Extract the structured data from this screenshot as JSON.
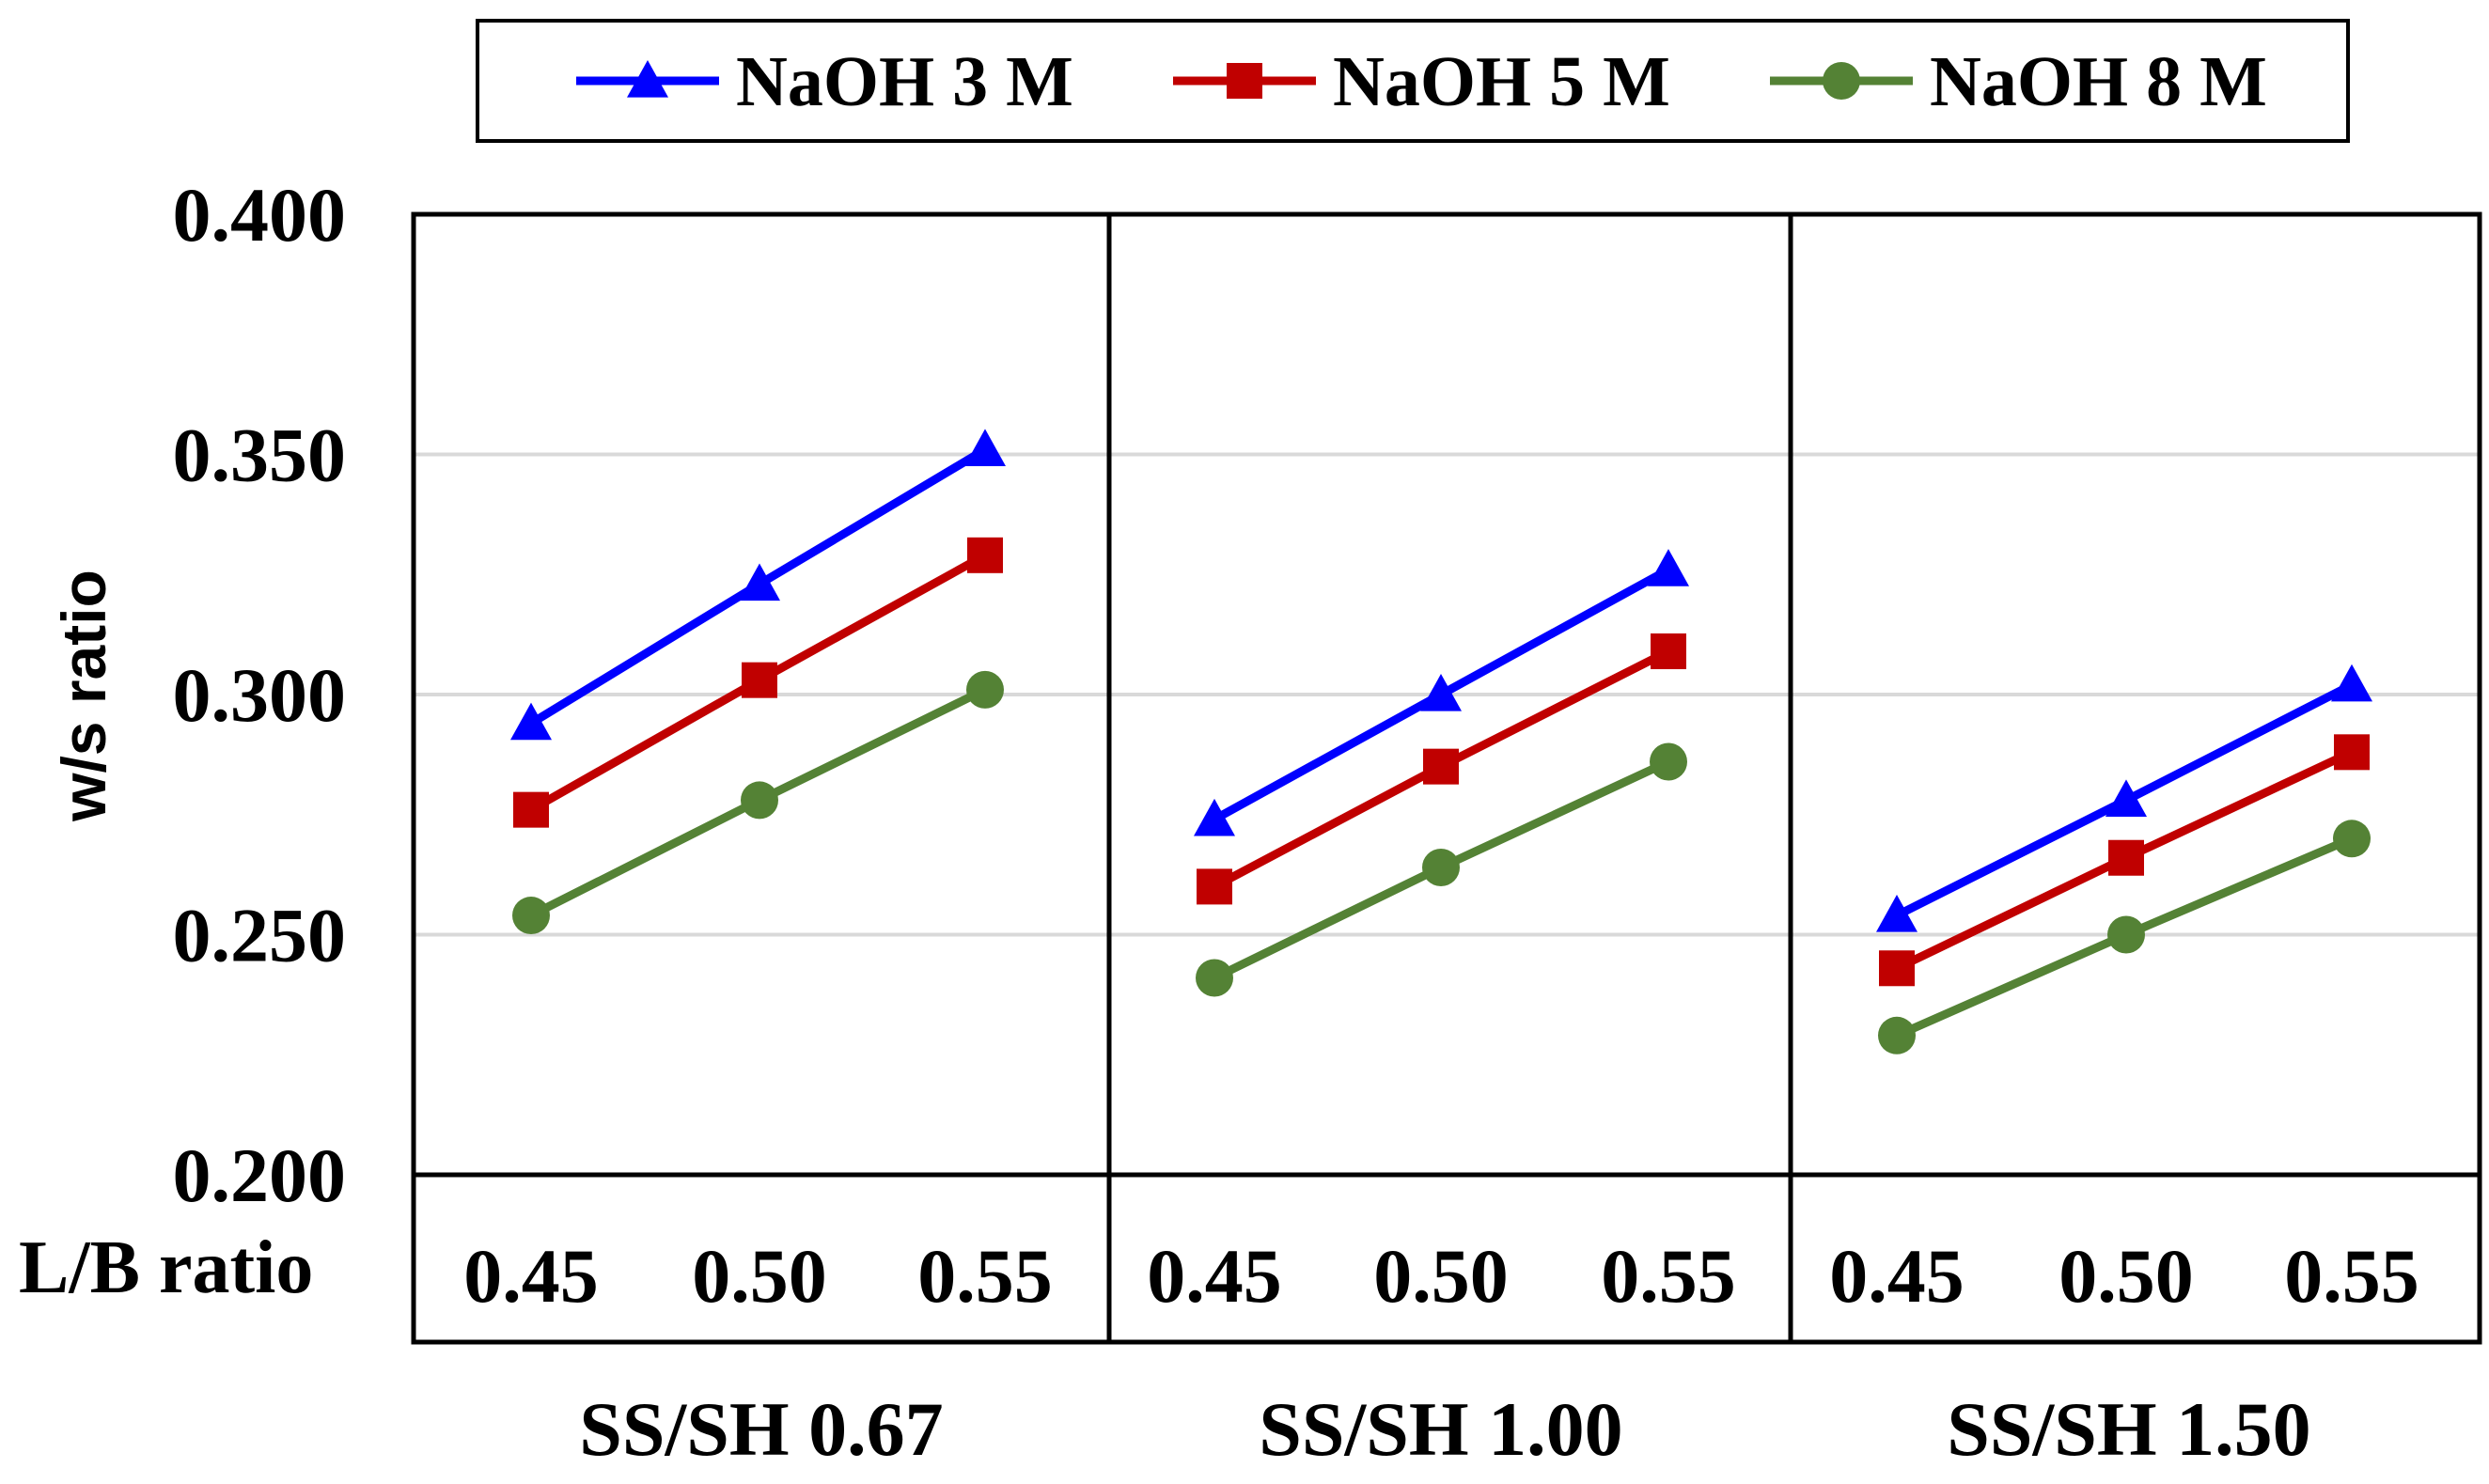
{
  "chart_data": {
    "type": "line",
    "ylabel": "w/s ratio",
    "row_label": "L/B ratio",
    "ylim": [
      0.2,
      0.4
    ],
    "yticks": [
      "0.200",
      "0.250",
      "0.300",
      "0.350",
      "0.400"
    ],
    "ytick_values": [
      0.2,
      0.25,
      0.3,
      0.35,
      0.4
    ],
    "grid": true,
    "legend_position": "top",
    "x_categories": [
      "0.45",
      "0.50",
      "0.55"
    ],
    "groups": [
      {
        "label": "SS/SH 0.67",
        "series": [
          {
            "name": "NaOH 3 M",
            "values": [
              0.294,
              0.323,
              0.351
            ]
          },
          {
            "name": "NaOH 5 M",
            "values": [
              0.276,
              0.303,
              0.329
            ]
          },
          {
            "name": "NaOH 8 M",
            "values": [
              0.254,
              0.278,
              0.301
            ]
          }
        ]
      },
      {
        "label": "SS/SH 1.00",
        "series": [
          {
            "name": "NaOH 3 M",
            "values": [
              0.274,
              0.3,
              0.326
            ]
          },
          {
            "name": "NaOH 5 M",
            "values": [
              0.26,
              0.285,
              0.309
            ]
          },
          {
            "name": "NaOH 8 M",
            "values": [
              0.241,
              0.264,
              0.286
            ]
          }
        ]
      },
      {
        "label": "SS/SH 1.50",
        "series": [
          {
            "name": "NaOH 3 M",
            "values": [
              0.254,
              0.278,
              0.302
            ]
          },
          {
            "name": "NaOH 5 M",
            "values": [
              0.243,
              0.266,
              0.288
            ]
          },
          {
            "name": "NaOH 8 M",
            "values": [
              0.229,
              0.25,
              0.27
            ]
          }
        ]
      }
    ],
    "legend": [
      {
        "name": "NaOH 3 M",
        "color": "#0000FF",
        "marker": "triangle"
      },
      {
        "name": "NaOH 5 M",
        "color": "#C00000",
        "marker": "square"
      },
      {
        "name": "NaOH 8 M",
        "color": "#548235",
        "marker": "circle"
      }
    ]
  }
}
